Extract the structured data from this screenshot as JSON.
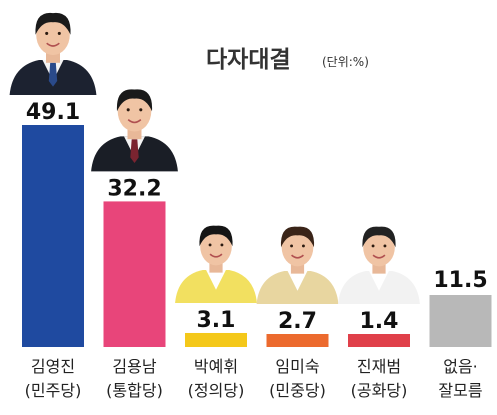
{
  "chart_data": {
    "type": "bar",
    "title": "다자대결",
    "unit_label": "(단위:%)",
    "categories": [
      {
        "name": "김영진",
        "party": "(민주당)"
      },
      {
        "name": "김용남",
        "party": "(통합당)"
      },
      {
        "name": "박예휘",
        "party": "(정의당)"
      },
      {
        "name": "임미숙",
        "party": "(민중당)"
      },
      {
        "name": "진재범",
        "party": "(공화당)"
      },
      {
        "name": "없음·",
        "party": "잘모름"
      }
    ],
    "values": [
      49.1,
      32.2,
      3.1,
      2.7,
      1.4,
      11.5
    ],
    "value_labels": [
      "49.1",
      "32.2",
      "3.1",
      "2.7",
      "1.4",
      "11.5"
    ],
    "colors": [
      "#1f4aa0",
      "#e8457a",
      "#f4c81a",
      "#ec6a2e",
      "#e0404a",
      "#b8b8b8"
    ],
    "photos": [
      {
        "icon": "person-photo-icon",
        "suit": "#1c2230",
        "tie": "#2a4a8a",
        "shirt": "#f4f4f4",
        "hair": "#1a1a1a"
      },
      {
        "icon": "person-photo-icon",
        "suit": "#1a1e26",
        "tie": "#7a2430",
        "shirt": "#f4f4f4",
        "hair": "#1a1a1a"
      },
      {
        "icon": "person-photo-icon",
        "suit": "#f2e060",
        "tie": "",
        "shirt": "#ffffff",
        "hair": "#151515"
      },
      {
        "icon": "person-photo-icon",
        "suit": "#e8d6a0",
        "tie": "",
        "shirt": "#ffffff",
        "hair": "#3a2418"
      },
      {
        "icon": "person-photo-icon",
        "suit": "#f2f2f2",
        "tie": "",
        "shirt": "#ffffff",
        "hair": "#222222"
      },
      null
    ],
    "legend": "none",
    "grid": false
  }
}
